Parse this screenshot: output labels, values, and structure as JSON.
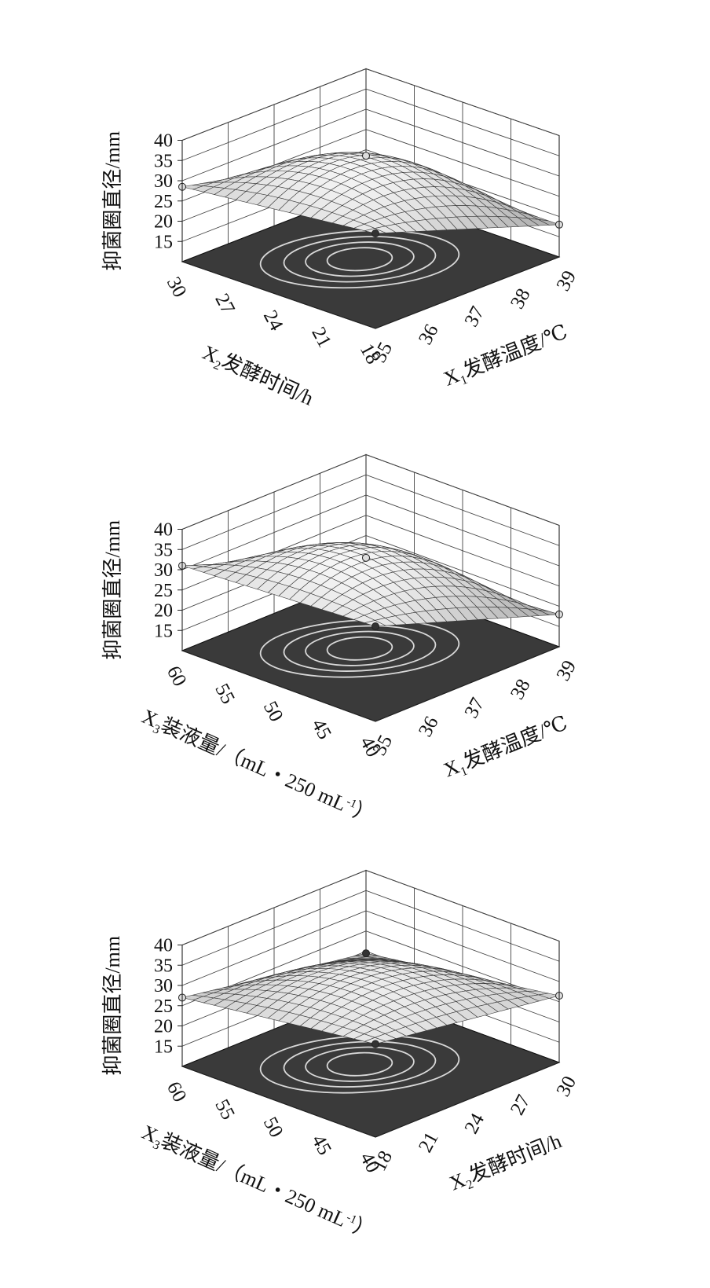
{
  "charts": [
    {
      "zlabel": "抑菌圈直径/mm",
      "zticks": [
        "40",
        "35",
        "30",
        "25",
        "20",
        "15"
      ],
      "left_axis": {
        "label_main": "X",
        "label_sub": "2",
        "label_rest": "发酵时间/h",
        "ticks": [
          "30",
          "27",
          "24",
          "21",
          "18"
        ]
      },
      "right_axis": {
        "label_main": "X",
        "label_sub": "1",
        "label_rest": "发酵温度/℃",
        "ticks": [
          "35",
          "36",
          "37",
          "38",
          "39"
        ]
      }
    },
    {
      "zlabel": "抑菌圈直径/mm",
      "zticks": [
        "40",
        "35",
        "30",
        "25",
        "20",
        "15"
      ],
      "left_axis": {
        "label_main": "X",
        "label_sub": "3",
        "label_rest": "装液量/（mL・250 mL",
        "label_sup": "-1",
        "label_end": "）",
        "ticks": [
          "60",
          "55",
          "50",
          "45",
          "40"
        ]
      },
      "right_axis": {
        "label_main": "X",
        "label_sub": "1",
        "label_rest": "发酵温度/℃",
        "ticks": [
          "35",
          "36",
          "37",
          "38",
          "39"
        ]
      }
    },
    {
      "zlabel": "抑菌圈直径/mm",
      "zticks": [
        "40",
        "35",
        "30",
        "25",
        "20",
        "15"
      ],
      "left_axis": {
        "label_main": "X",
        "label_sub": "3",
        "label_rest": "装液量/（mL・250 mL",
        "label_sup": "-1",
        "label_end": "）",
        "ticks": [
          "60",
          "55",
          "50",
          "45",
          "40"
        ]
      },
      "right_axis": {
        "label_main": "X",
        "label_sub": "2",
        "label_rest": "发酵时间/h",
        "ticks": [
          "18",
          "21",
          "24",
          "27",
          "30"
        ]
      }
    }
  ],
  "chart_data": [
    {
      "type": "surface",
      "x": {
        "ticks": [
          35,
          36,
          37,
          38,
          39
        ]
      },
      "y": {
        "ticks": [
          30,
          27,
          24,
          21,
          18
        ]
      },
      "zlim": [
        10,
        40
      ],
      "peak_z": 34.5,
      "corner_points": [
        {
          "x": 35,
          "y": 30,
          "z": 28.5
        },
        {
          "x": 35,
          "y": 18,
          "z": 33.5
        },
        {
          "x": 39,
          "y": 18,
          "z": 18.0
        },
        {
          "x": 39,
          "y": 30,
          "z": 18.5
        }
      ]
    },
    {
      "type": "surface",
      "x": {
        "ticks": [
          35,
          36,
          37,
          38,
          39
        ]
      },
      "y": {
        "ticks": [
          60,
          55,
          50,
          45,
          40
        ]
      },
      "zlim": [
        10,
        40
      ],
      "peak_z": 34.5,
      "corner_points": [
        {
          "x": 35,
          "y": 60,
          "z": 31.0
        },
        {
          "x": 35,
          "y": 40,
          "z": 33.5
        },
        {
          "x": 39,
          "y": 40,
          "z": 18.0
        },
        {
          "x": 39,
          "y": 60,
          "z": 14.5
        }
      ]
    },
    {
      "type": "surface",
      "x": {
        "ticks": [
          18,
          21,
          24,
          27,
          30
        ]
      },
      "y": {
        "ticks": [
          60,
          55,
          50,
          45,
          40
        ]
      },
      "zlim": [
        10,
        40
      ],
      "peak_z": 33.0,
      "corner_points": [
        {
          "x": 18,
          "y": 60,
          "z": 27.0
        },
        {
          "x": 18,
          "y": 40,
          "z": 33.0
        },
        {
          "x": 30,
          "y": 40,
          "z": 26.5
        },
        {
          "x": 30,
          "y": 60,
          "z": 19.5
        }
      ]
    }
  ]
}
